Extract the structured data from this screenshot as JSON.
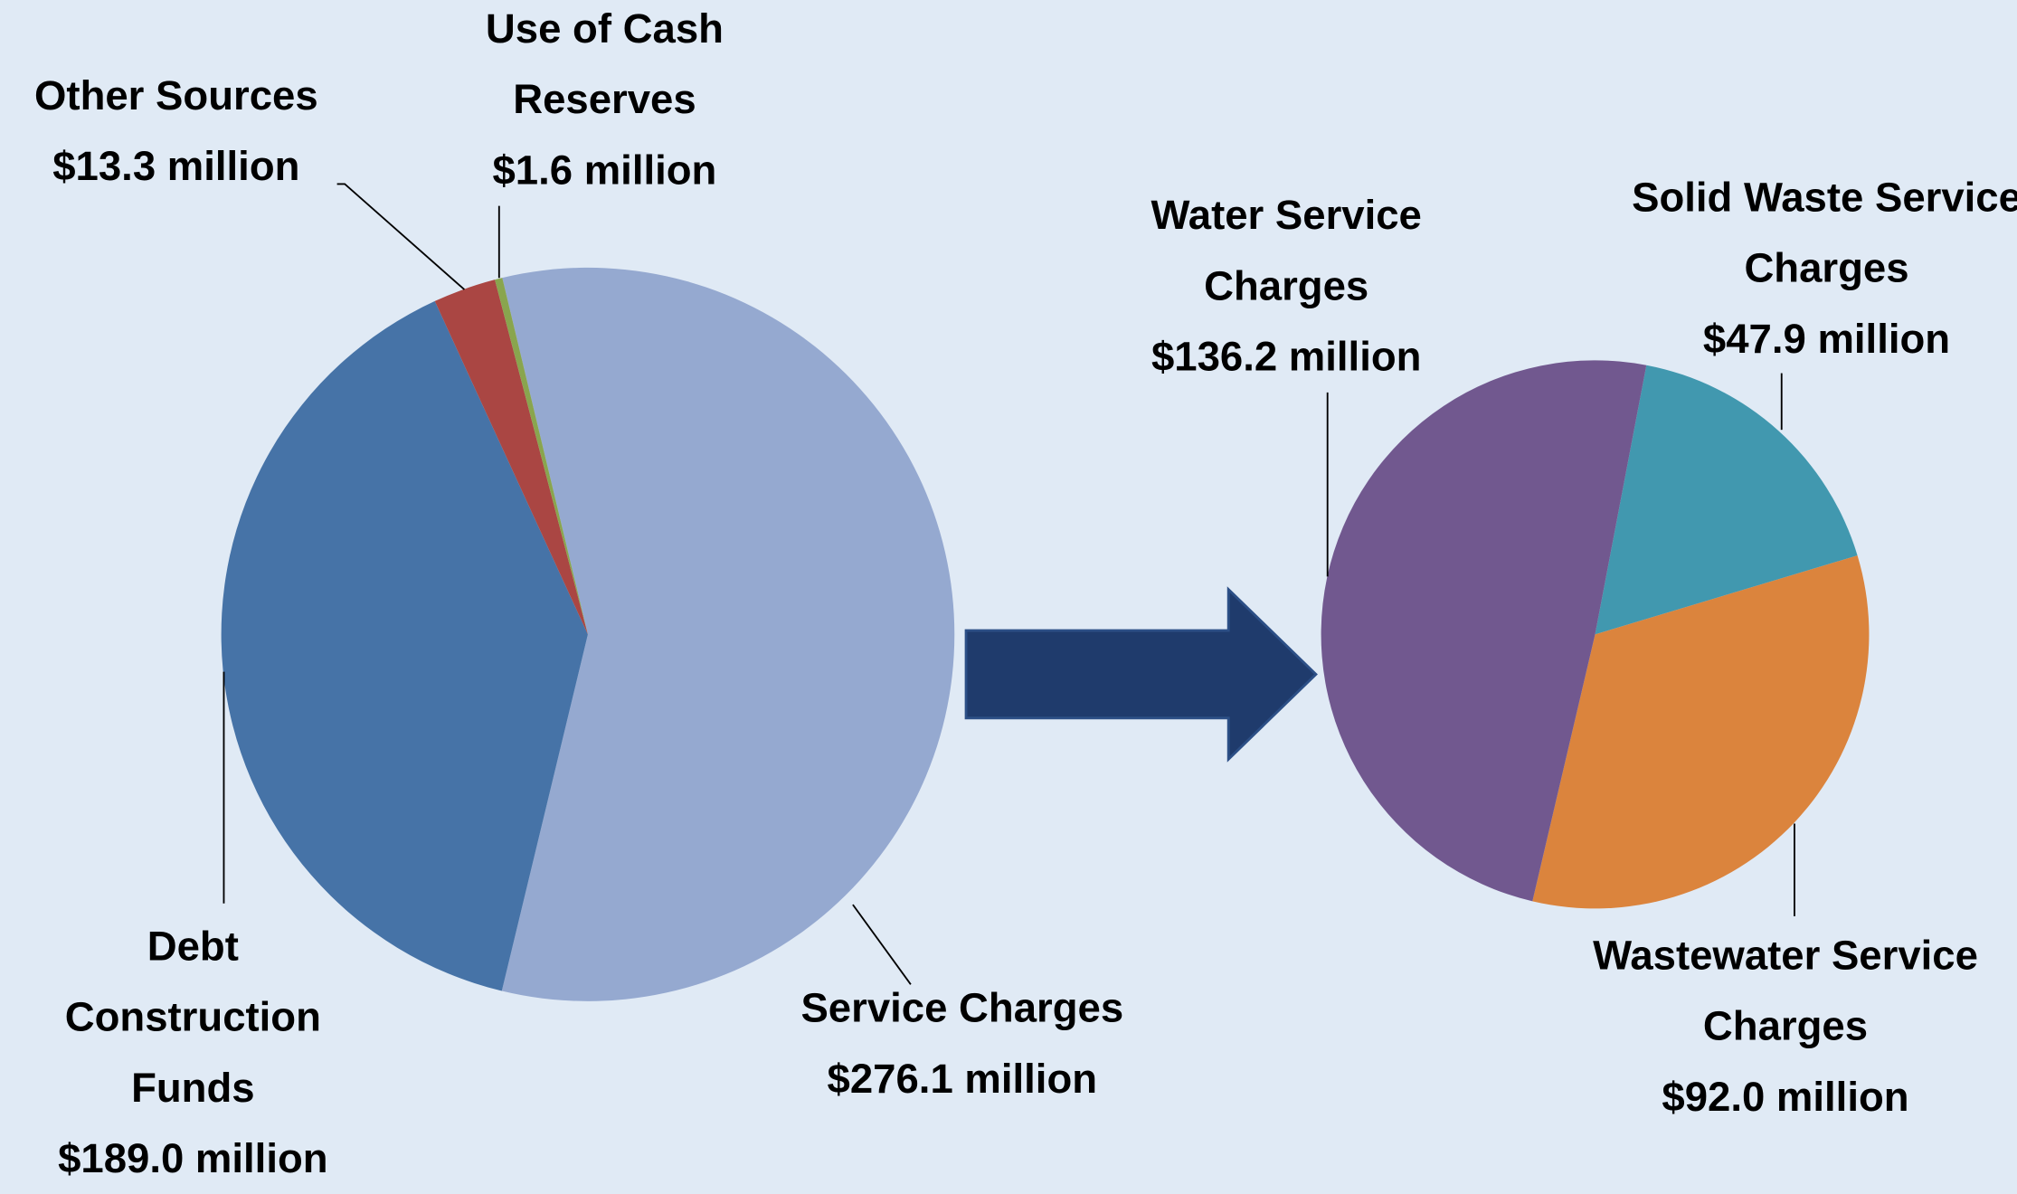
{
  "chart_data": [
    {
      "type": "pie",
      "categories": [
        "Service Charges",
        "Debt Construction Funds",
        "Other Sources",
        "Use of Cash Reserves"
      ],
      "values": [
        276.1,
        189.0,
        13.3,
        1.6
      ],
      "value_labels": [
        "$276.1 million",
        "$189.0 million",
        "$13.3 million",
        "$1.6 million"
      ],
      "colors": [
        "#95a9d0",
        "#4673a7",
        "#aa4643",
        "#89a54e"
      ]
    },
    {
      "type": "pie",
      "categories": [
        "Solid Waste Service Charges",
        "Wastewater Service Charges",
        "Water Service Charges"
      ],
      "values": [
        47.9,
        92.0,
        136.2
      ],
      "value_labels": [
        "$47.9 million",
        "$92.0 million",
        "$136.2 million"
      ],
      "colors": [
        "#4198af",
        "#db843d",
        "#71588f"
      ]
    }
  ]
}
